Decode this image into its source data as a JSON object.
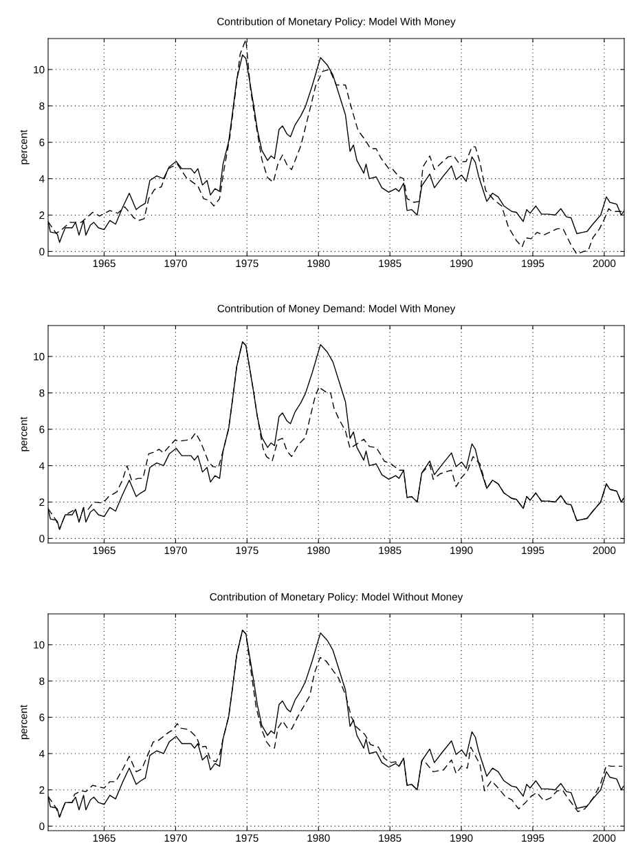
{
  "chart_data": [
    {
      "type": "line",
      "title": "Contribution of Monetary Policy: Model With Money",
      "ylabel": "percent",
      "xlim": [
        1961.08,
        2001.4
      ],
      "ylim": [
        -0.25,
        11.7
      ],
      "xticks": [
        1965,
        1970,
        1975,
        1980,
        1985,
        1990,
        1995,
        2000
      ],
      "yticks": [
        0,
        2,
        4,
        6,
        8,
        10
      ],
      "grid": true,
      "series": [
        {
          "color": "#000000",
          "line_style": "solid",
          "x": [
            1961.08,
            1961.24,
            1961.64,
            1961.72,
            1961.88,
            1962.12,
            1962.28,
            1962.76,
            1963.0,
            1963.24,
            1963.56,
            1963.72,
            1964.04,
            1964.28,
            1964.6,
            1965.0,
            1965.4,
            1965.8,
            1966.28,
            1966.76,
            1967.24,
            1967.56,
            1967.88,
            1968.2,
            1968.68,
            1969.16,
            1969.56,
            1970.04,
            1970.44,
            1971.08,
            1971.32,
            1971.56,
            1971.88,
            1972.2,
            1972.44,
            1972.76,
            1973.08,
            1973.32,
            1973.72,
            1974.04,
            1974.28,
            1974.68,
            1974.92,
            1975.24,
            1975.48,
            1975.72,
            1976.04,
            1976.44,
            1976.68,
            1976.92,
            1977.24,
            1977.48,
            1977.8,
            1978.04,
            1978.36,
            1978.76,
            1979.08,
            1979.56,
            1980.14,
            1980.61,
            1981.01,
            1981.41,
            1981.89,
            1982.21,
            1982.45,
            1982.69,
            1983.17,
            1983.33,
            1983.56,
            1984.04,
            1984.44,
            1984.92,
            1985.4,
            1985.64,
            1985.96,
            1986.2,
            1986.52,
            1986.91,
            1987.23,
            1987.79,
            1988.11,
            1988.59,
            1989.31,
            1989.63,
            1990.02,
            1990.34,
            1990.74,
            1990.98,
            1991.22,
            1991.78,
            1992.18,
            1992.58,
            1992.98,
            1993.53,
            1993.85,
            1994.33,
            1994.57,
            1994.81,
            1995.21,
            1995.61,
            1996.09,
            1996.56,
            1996.96,
            1997.36,
            1997.68,
            1998.08,
            1998.48,
            1998.8,
            1999.2,
            1999.75,
            2000.15,
            2000.39,
            2000.87,
            2001.19,
            2001.35
          ],
          "values": [
            1.64,
            1.07,
            1.0,
            0.95,
            0.5,
            1.0,
            1.3,
            1.3,
            1.6,
            0.9,
            1.7,
            0.9,
            1.45,
            1.6,
            1.3,
            1.2,
            1.7,
            1.5,
            2.4,
            3.2,
            2.3,
            2.5,
            2.65,
            3.9,
            4.15,
            4.0,
            4.65,
            4.95,
            4.55,
            4.55,
            4.3,
            4.55,
            3.65,
            3.9,
            3.1,
            3.45,
            3.3,
            4.8,
            6.05,
            7.95,
            9.45,
            10.8,
            10.6,
            9.1,
            7.95,
            6.7,
            5.55,
            5.0,
            5.25,
            5.1,
            6.7,
            6.9,
            6.45,
            6.3,
            6.95,
            7.45,
            7.95,
            9.1,
            10.65,
            10.25,
            9.7,
            8.7,
            7.5,
            5.5,
            5.85,
            5.0,
            4.3,
            4.8,
            4.0,
            4.1,
            3.5,
            3.25,
            3.45,
            3.3,
            3.75,
            2.25,
            2.3,
            2.0,
            3.6,
            4.25,
            3.5,
            4.0,
            4.7,
            3.95,
            4.2,
            3.85,
            5.2,
            4.9,
            4.1,
            2.75,
            3.2,
            3.0,
            2.5,
            2.2,
            2.15,
            1.65,
            2.3,
            2.1,
            2.5,
            2.05,
            2.05,
            2.0,
            2.35,
            1.9,
            1.85,
            0.98,
            1.05,
            1.1,
            1.5,
            2.0,
            3.0,
            2.7,
            2.6,
            2.0,
            2.2
          ]
        },
        {
          "color": "#000000",
          "line_style": "dashed",
          "x": [
            1961.08,
            1961.64,
            1961.96,
            1962.6,
            1963.4,
            1964.2,
            1964.68,
            1965.4,
            1965.96,
            1966.44,
            1967.08,
            1967.4,
            1967.8,
            1968.12,
            1968.52,
            1969.0,
            1969.48,
            1970.12,
            1970.76,
            1971.56,
            1971.96,
            1972.36,
            1972.68,
            1973.08,
            1973.4,
            1973.8,
            1974.2,
            1974.52,
            1974.92,
            1975.24,
            1975.56,
            1976.04,
            1976.44,
            1976.84,
            1977.16,
            1977.48,
            1977.8,
            1978.12,
            1978.76,
            1979.4,
            1979.8,
            1980.29,
            1980.77,
            1981.25,
            1981.89,
            1982.13,
            1982.45,
            1982.77,
            1983.25,
            1983.64,
            1984.04,
            1984.36,
            1984.92,
            1985.16,
            1985.64,
            1985.96,
            1986.2,
            1986.67,
            1987.07,
            1987.31,
            1987.79,
            1988.11,
            1988.51,
            1989.07,
            1989.47,
            1989.79,
            1990.34,
            1990.74,
            1990.98,
            1991.3,
            1991.7,
            1992.26,
            1992.82,
            1993.29,
            1993.85,
            1994.25,
            1994.49,
            1994.89,
            1995.29,
            1995.77,
            1996.17,
            1996.72,
            1997.12,
            1997.68,
            1998.08,
            1998.56,
            1998.88,
            1999.2,
            1999.67,
            1999.99,
            2000.31,
            2000.55,
            2001.03,
            2001.35
          ],
          "values": [
            1.64,
            1.0,
            1.15,
            1.6,
            1.6,
            2.15,
            1.95,
            2.25,
            2.1,
            2.45,
            1.85,
            1.7,
            1.8,
            2.9,
            3.4,
            3.55,
            4.55,
            4.8,
            4.05,
            3.6,
            2.9,
            2.8,
            2.5,
            2.9,
            4.55,
            6.3,
            8.8,
            10.85,
            11.65,
            8.95,
            7.3,
            5.05,
            4.05,
            3.8,
            4.8,
            5.3,
            4.75,
            4.5,
            5.8,
            7.8,
            9.1,
            9.9,
            10.0,
            9.15,
            9.15,
            8.4,
            7.5,
            6.65,
            6.15,
            5.65,
            5.65,
            5.15,
            4.55,
            4.55,
            4.1,
            4.0,
            2.9,
            2.7,
            2.75,
            4.65,
            5.25,
            4.5,
            4.8,
            5.2,
            5.25,
            4.9,
            4.95,
            5.75,
            5.75,
            4.9,
            3.35,
            2.85,
            2.5,
            1.35,
            0.6,
            0.25,
            0.75,
            0.7,
            1.05,
            0.9,
            1.05,
            1.25,
            1.25,
            0.35,
            -0.15,
            0.0,
            0.05,
            0.75,
            1.25,
            1.75,
            2.35,
            2.2,
            2.2,
            2.2
          ]
        }
      ]
    },
    {
      "type": "line",
      "title": "Contribution of Money Demand: Model With Money",
      "ylabel": "percent",
      "xlim": [
        1961.08,
        2001.4
      ],
      "ylim": [
        -0.25,
        11.7
      ],
      "xticks": [
        1965,
        1970,
        1975,
        1980,
        1985,
        1990,
        1995,
        2000
      ],
      "yticks": [
        0,
        2,
        4,
        6,
        8,
        10
      ],
      "grid": true,
      "series": [
        {
          "color": "#000000",
          "line_style": "solid",
          "x": [
            1961.08,
            1961.24,
            1961.64,
            1961.72,
            1961.88,
            1962.12,
            1962.28,
            1962.76,
            1963.0,
            1963.24,
            1963.56,
            1963.72,
            1964.04,
            1964.28,
            1964.6,
            1965.0,
            1965.4,
            1965.8,
            1966.28,
            1966.76,
            1967.24,
            1967.56,
            1967.88,
            1968.2,
            1968.68,
            1969.16,
            1969.56,
            1970.04,
            1970.44,
            1971.08,
            1971.32,
            1971.56,
            1971.88,
            1972.2,
            1972.44,
            1972.76,
            1973.08,
            1973.32,
            1973.72,
            1974.04,
            1974.28,
            1974.68,
            1974.92,
            1975.24,
            1975.48,
            1975.72,
            1976.04,
            1976.44,
            1976.68,
            1976.92,
            1977.24,
            1977.48,
            1977.8,
            1978.04,
            1978.36,
            1978.76,
            1979.08,
            1979.56,
            1980.14,
            1980.61,
            1981.01,
            1981.41,
            1981.89,
            1982.21,
            1982.45,
            1982.69,
            1983.17,
            1983.33,
            1983.56,
            1984.04,
            1984.44,
            1984.92,
            1985.4,
            1985.64,
            1985.96,
            1986.2,
            1986.52,
            1986.91,
            1987.23,
            1987.79,
            1988.11,
            1988.59,
            1989.31,
            1989.63,
            1990.02,
            1990.34,
            1990.74,
            1990.98,
            1991.22,
            1991.78,
            1992.18,
            1992.58,
            1992.98,
            1993.53,
            1993.85,
            1994.33,
            1994.57,
            1994.81,
            1995.21,
            1995.61,
            1996.09,
            1996.56,
            1996.96,
            1997.36,
            1997.68,
            1998.08,
            1998.48,
            1998.8,
            1999.2,
            1999.75,
            2000.15,
            2000.39,
            2000.87,
            2001.19,
            2001.35
          ],
          "values": [
            1.64,
            1.07,
            1.0,
            0.95,
            0.5,
            1.0,
            1.3,
            1.3,
            1.6,
            0.9,
            1.7,
            0.9,
            1.45,
            1.6,
            1.3,
            1.2,
            1.7,
            1.5,
            2.4,
            3.2,
            2.3,
            2.5,
            2.65,
            3.9,
            4.15,
            4.0,
            4.65,
            4.95,
            4.55,
            4.55,
            4.3,
            4.55,
            3.65,
            3.9,
            3.1,
            3.45,
            3.3,
            4.8,
            6.05,
            7.95,
            9.45,
            10.8,
            10.6,
            9.1,
            7.95,
            6.7,
            5.55,
            5.0,
            5.25,
            5.1,
            6.7,
            6.9,
            6.45,
            6.3,
            6.95,
            7.45,
            7.95,
            9.1,
            10.65,
            10.25,
            9.7,
            8.7,
            7.5,
            5.5,
            5.85,
            5.0,
            4.3,
            4.8,
            4.0,
            4.1,
            3.5,
            3.25,
            3.45,
            3.3,
            3.75,
            2.25,
            2.3,
            2.0,
            3.6,
            4.25,
            3.5,
            4.0,
            4.7,
            3.95,
            4.2,
            3.85,
            5.2,
            4.9,
            4.1,
            2.75,
            3.2,
            3.0,
            2.5,
            2.2,
            2.15,
            1.65,
            2.3,
            2.1,
            2.5,
            2.05,
            2.05,
            2.0,
            2.35,
            1.9,
            1.85,
            0.98,
            1.05,
            1.1,
            1.5,
            2.0,
            3.0,
            2.7,
            2.6,
            2.0,
            2.2
          ]
        },
        {
          "color": "#000000",
          "line_style": "dashed",
          "x": [
            1961.08,
            1961.64,
            1961.88,
            1962.28,
            1963.0,
            1963.24,
            1963.56,
            1963.88,
            1964.28,
            1964.92,
            1965.32,
            1965.88,
            1966.28,
            1966.6,
            1966.92,
            1967.4,
            1967.72,
            1968.12,
            1968.52,
            1968.84,
            1969.16,
            1969.48,
            1969.96,
            1970.28,
            1970.76,
            1971.08,
            1971.4,
            1971.72,
            1972.04,
            1972.28,
            1972.6,
            1973.0,
            1973.32,
            1973.72,
            1974.04,
            1974.28,
            1974.68,
            1974.92,
            1975.24,
            1975.48,
            1975.72,
            1976.12,
            1976.36,
            1976.76,
            1977.16,
            1977.48,
            1977.8,
            1978.12,
            1978.6,
            1979.08,
            1979.4,
            1979.72,
            1980.04,
            1980.14,
            1980.61,
            1980.85,
            1981.09,
            1981.41,
            1981.89,
            1982.21,
            1982.61,
            1983.17,
            1983.56,
            1984.04,
            1984.36,
            1984.6,
            1985.08,
            1985.64,
            1985.96,
            1986.2,
            1986.52,
            1986.91,
            1987.23,
            1987.79,
            1988.03,
            1988.51,
            1989.07,
            1989.31,
            1989.63,
            1990.02,
            1990.42,
            1990.82,
            1991.3,
            1991.78,
            1992.18,
            1992.58,
            1992.98,
            1993.53,
            1993.85,
            1994.33,
            1994.57,
            1994.81,
            1995.21,
            1995.61,
            1996.09,
            1996.56,
            1996.96,
            1997.36,
            1997.68,
            1998.08,
            1998.48,
            1998.8,
            1999.2,
            1999.75,
            2000.15,
            2000.39,
            2000.87,
            2001.19,
            2001.35
          ],
          "values": [
            1.64,
            1.0,
            0.5,
            1.3,
            1.6,
            0.9,
            1.7,
            1.6,
            2.0,
            1.95,
            2.3,
            2.55,
            3.2,
            4.0,
            3.2,
            3.3,
            3.3,
            4.65,
            4.75,
            4.9,
            4.7,
            5.0,
            5.4,
            5.35,
            5.4,
            5.45,
            5.8,
            5.35,
            4.75,
            4.25,
            3.95,
            3.9,
            4.8,
            6.05,
            7.95,
            9.45,
            10.8,
            10.6,
            9.1,
            7.95,
            6.7,
            4.95,
            4.5,
            4.25,
            5.4,
            5.5,
            4.8,
            4.5,
            5.15,
            5.55,
            6.6,
            7.65,
            8.35,
            8.25,
            8.0,
            8.0,
            7.15,
            6.6,
            5.9,
            4.95,
            5.15,
            5.45,
            5.05,
            5.0,
            4.6,
            4.25,
            4.1,
            3.75,
            3.75,
            2.25,
            2.3,
            2.0,
            3.6,
            4.05,
            3.25,
            3.55,
            3.7,
            3.75,
            2.85,
            3.35,
            3.7,
            4.5,
            4.1,
            2.75,
            3.2,
            3.0,
            2.5,
            2.2,
            2.15,
            1.65,
            2.3,
            2.1,
            2.5,
            2.05,
            2.05,
            2.0,
            2.35,
            1.9,
            1.85,
            0.98,
            1.05,
            1.1,
            1.5,
            2.0,
            3.0,
            2.7,
            2.6,
            2.0,
            2.2
          ]
        }
      ]
    },
    {
      "type": "line",
      "title": "Contribution of Monetary Policy: Model Without Money",
      "ylabel": "percent",
      "xlim": [
        1961.08,
        2001.4
      ],
      "ylim": [
        -0.25,
        11.7
      ],
      "xticks": [
        1965,
        1970,
        1975,
        1980,
        1985,
        1990,
        1995,
        2000
      ],
      "yticks": [
        0,
        2,
        4,
        6,
        8,
        10
      ],
      "grid": true,
      "series": [
        {
          "color": "#000000",
          "line_style": "solid",
          "x": [
            1961.08,
            1961.24,
            1961.64,
            1961.72,
            1961.88,
            1962.12,
            1962.28,
            1962.76,
            1963.0,
            1963.24,
            1963.56,
            1963.72,
            1964.04,
            1964.28,
            1964.6,
            1965.0,
            1965.4,
            1965.8,
            1966.28,
            1966.76,
            1967.24,
            1967.56,
            1967.88,
            1968.2,
            1968.68,
            1969.16,
            1969.56,
            1970.04,
            1970.44,
            1971.08,
            1971.32,
            1971.56,
            1971.88,
            1972.2,
            1972.44,
            1972.76,
            1973.08,
            1973.32,
            1973.72,
            1974.04,
            1974.28,
            1974.68,
            1974.92,
            1975.24,
            1975.48,
            1975.72,
            1976.04,
            1976.44,
            1976.68,
            1976.92,
            1977.24,
            1977.48,
            1977.8,
            1978.04,
            1978.36,
            1978.76,
            1979.08,
            1979.56,
            1980.14,
            1980.61,
            1981.01,
            1981.41,
            1981.89,
            1982.21,
            1982.45,
            1982.69,
            1983.17,
            1983.33,
            1983.56,
            1984.04,
            1984.44,
            1984.92,
            1985.4,
            1985.64,
            1985.96,
            1986.2,
            1986.52,
            1986.91,
            1987.23,
            1987.79,
            1988.11,
            1988.59,
            1989.31,
            1989.63,
            1990.02,
            1990.34,
            1990.74,
            1990.98,
            1991.22,
            1991.78,
            1992.18,
            1992.58,
            1992.98,
            1993.53,
            1993.85,
            1994.33,
            1994.57,
            1994.81,
            1995.21,
            1995.61,
            1996.09,
            1996.56,
            1996.96,
            1997.36,
            1997.68,
            1998.08,
            1998.48,
            1998.8,
            1999.2,
            1999.75,
            2000.15,
            2000.39,
            2000.87,
            2001.19,
            2001.35
          ],
          "values": [
            1.64,
            1.07,
            1.0,
            0.95,
            0.5,
            1.0,
            1.3,
            1.3,
            1.6,
            0.9,
            1.7,
            0.9,
            1.45,
            1.6,
            1.3,
            1.2,
            1.7,
            1.5,
            2.4,
            3.2,
            2.3,
            2.5,
            2.65,
            3.9,
            4.15,
            4.0,
            4.65,
            4.95,
            4.55,
            4.55,
            4.3,
            4.55,
            3.65,
            3.9,
            3.1,
            3.45,
            3.3,
            4.8,
            6.05,
            7.95,
            9.45,
            10.8,
            10.6,
            9.1,
            7.95,
            6.7,
            5.55,
            5.0,
            5.25,
            5.1,
            6.7,
            6.9,
            6.45,
            6.3,
            6.95,
            7.45,
            7.95,
            9.1,
            10.65,
            10.25,
            9.7,
            8.7,
            7.5,
            5.5,
            5.85,
            5.0,
            4.3,
            4.8,
            4.0,
            4.1,
            3.5,
            3.25,
            3.45,
            3.3,
            3.75,
            2.25,
            2.3,
            2.0,
            3.6,
            4.25,
            3.5,
            4.0,
            4.7,
            3.95,
            4.2,
            3.85,
            5.2,
            4.9,
            4.1,
            2.75,
            3.2,
            3.0,
            2.5,
            2.2,
            2.15,
            1.65,
            2.3,
            2.1,
            2.5,
            2.05,
            2.05,
            2.0,
            2.35,
            1.9,
            1.85,
            0.98,
            1.05,
            1.1,
            1.5,
            2.0,
            3.0,
            2.7,
            2.6,
            2.0,
            2.2
          ]
        },
        {
          "color": "#000000",
          "line_style": "dashed",
          "x": [
            1961.08,
            1961.64,
            1961.88,
            1962.28,
            1962.76,
            1962.92,
            1963.4,
            1963.72,
            1964.2,
            1964.68,
            1965.0,
            1965.4,
            1965.8,
            1966.28,
            1966.76,
            1967.24,
            1967.64,
            1968.04,
            1968.44,
            1968.76,
            1969.08,
            1969.48,
            1969.8,
            1970.12,
            1970.36,
            1970.76,
            1971.08,
            1971.48,
            1971.72,
            1972.12,
            1972.44,
            1972.84,
            1973.08,
            1973.32,
            1973.72,
            1974.04,
            1974.28,
            1974.68,
            1974.92,
            1975.24,
            1975.64,
            1976.04,
            1976.36,
            1976.6,
            1976.92,
            1977.16,
            1977.48,
            1977.88,
            1978.12,
            1978.6,
            1979.08,
            1979.4,
            1979.72,
            1980.12,
            1980.53,
            1981.09,
            1981.41,
            1981.89,
            1982.29,
            1982.61,
            1983.25,
            1983.64,
            1984.2,
            1984.6,
            1985.0,
            1985.4,
            1985.64,
            1985.96,
            1986.2,
            1986.52,
            1986.91,
            1987.23,
            1987.39,
            1988.03,
            1988.75,
            1989.31,
            1989.63,
            1990.02,
            1990.42,
            1990.66,
            1991.3,
            1991.62,
            1992.1,
            1992.58,
            1993.05,
            1993.53,
            1994.01,
            1994.49,
            1994.89,
            1995.29,
            1995.77,
            1996.24,
            1996.72,
            1997.12,
            1997.36,
            1998.16,
            1998.64,
            1999.27,
            1999.75,
            2000.15,
            2000.47,
            2000.87,
            2001.27
          ],
          "values": [
            1.64,
            1.0,
            0.5,
            1.3,
            1.3,
            1.75,
            1.95,
            1.9,
            2.25,
            2.15,
            2.1,
            2.45,
            2.45,
            3.1,
            3.85,
            3.0,
            3.15,
            3.9,
            4.65,
            4.7,
            4.9,
            5.15,
            5.3,
            5.65,
            5.4,
            5.35,
            5.2,
            4.9,
            4.35,
            4.4,
            3.65,
            3.55,
            3.95,
            4.8,
            6.05,
            7.95,
            9.45,
            10.8,
            10.6,
            8.75,
            6.55,
            5.3,
            4.65,
            4.4,
            4.3,
            5.4,
            5.8,
            5.35,
            5.35,
            6.1,
            6.75,
            7.2,
            8.45,
            9.3,
            9.1,
            8.5,
            8.15,
            7.25,
            6.05,
            5.5,
            5.05,
            4.5,
            4.35,
            3.75,
            3.5,
            3.55,
            3.3,
            3.75,
            2.25,
            2.3,
            2.0,
            3.6,
            3.6,
            3.0,
            3.1,
            3.65,
            2.9,
            3.3,
            3.2,
            4.35,
            3.4,
            1.95,
            2.5,
            2.1,
            1.65,
            1.45,
            0.95,
            1.3,
            1.65,
            1.85,
            1.4,
            1.55,
            1.95,
            1.95,
            1.65,
            0.8,
            0.95,
            1.6,
            2.35,
            3.35,
            3.3,
            3.3,
            3.3
          ]
        }
      ]
    }
  ]
}
